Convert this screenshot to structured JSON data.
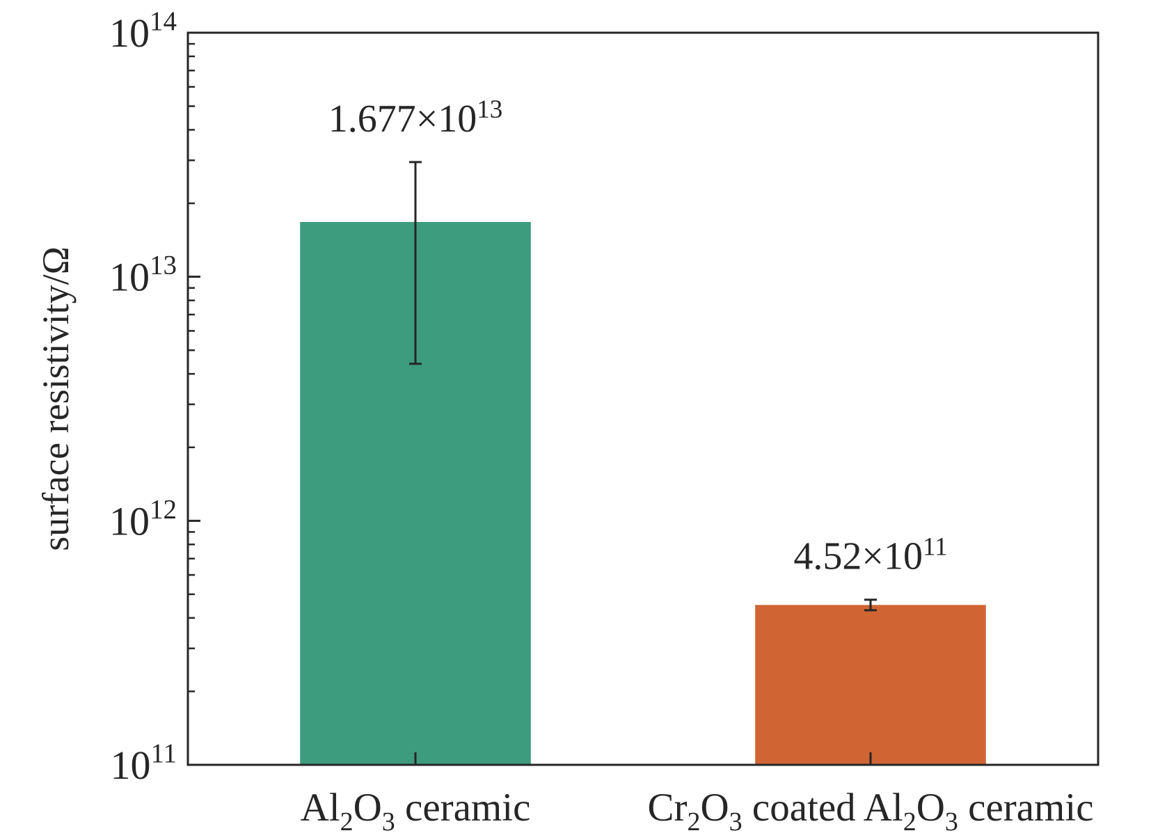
{
  "chart_data": {
    "type": "bar",
    "scale": "log",
    "ylabel": "surface resistivity/Ω",
    "ylim": [
      100000000000.0,
      100000000000000.0
    ],
    "yticks": [
      {
        "base": "10",
        "exp": "11"
      },
      {
        "base": "10",
        "exp": "12"
      },
      {
        "base": "10",
        "exp": "13"
      },
      {
        "base": "10",
        "exp": "14"
      }
    ],
    "categories": [
      {
        "parts": [
          [
            "Al",
            ""
          ],
          [
            "2",
            "sub"
          ],
          [
            "O",
            ""
          ],
          [
            "3",
            "sub"
          ],
          [
            " ceramic",
            ""
          ]
        ]
      },
      {
        "parts": [
          [
            "Cr",
            ""
          ],
          [
            "2",
            "sub"
          ],
          [
            "O",
            ""
          ],
          [
            "3",
            "sub"
          ],
          [
            " coated Al",
            ""
          ],
          [
            "2",
            "sub"
          ],
          [
            "O",
            ""
          ],
          [
            "3",
            "sub"
          ],
          [
            " ceramic",
            ""
          ]
        ]
      }
    ],
    "values": [
      16770000000000.0,
      452000000000.0
    ],
    "error_low": [
      4400000000000.0,
      430000000000.0
    ],
    "error_high": [
      29500000000000.0,
      475000000000.0
    ],
    "data_labels": [
      {
        "mantissa": "1.677×10",
        "exp": "13"
      },
      {
        "mantissa": "4.52×10",
        "exp": "11"
      }
    ],
    "colors": [
      "#3d9b7e",
      "#d06533"
    ],
    "grid": false,
    "legend": "none"
  }
}
